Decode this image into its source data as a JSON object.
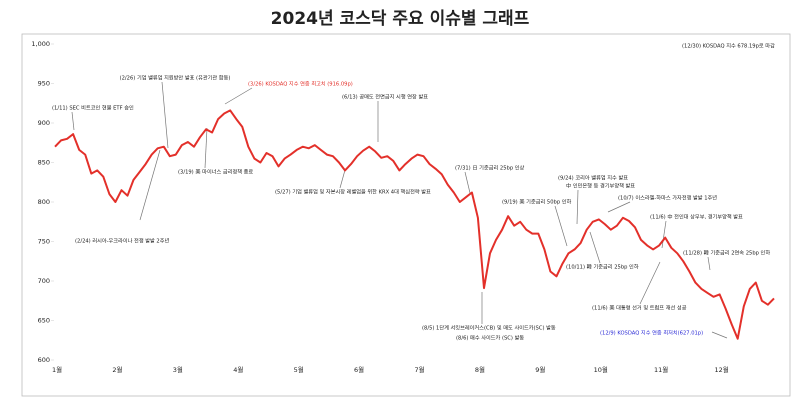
{
  "chart_data": {
    "type": "line",
    "title": "2024년 코스닥 주요 이슈별 그래프",
    "color": "#e3302a",
    "categories": [
      "1월",
      null,
      null,
      null,
      null,
      null,
      null,
      null,
      null,
      null,
      "2월",
      null,
      null,
      null,
      null,
      null,
      null,
      null,
      null,
      null,
      "3월",
      null,
      null,
      null,
      null,
      null,
      null,
      null,
      null,
      null,
      "4월",
      null,
      null,
      null,
      null,
      null,
      null,
      null,
      null,
      null,
      "5월",
      null,
      null,
      null,
      null,
      null,
      null,
      null,
      null,
      null,
      "6월",
      null,
      null,
      null,
      null,
      null,
      null,
      null,
      null,
      null,
      "7월",
      null,
      null,
      null,
      null,
      null,
      null,
      null,
      null,
      null,
      "8월",
      null,
      null,
      null,
      null,
      null,
      null,
      null,
      null,
      null,
      "9월",
      null,
      null,
      null,
      null,
      null,
      null,
      null,
      null,
      null,
      "10월",
      null,
      null,
      null,
      null,
      null,
      null,
      null,
      null,
      null,
      "11월",
      null,
      null,
      null,
      null,
      null,
      null,
      null,
      null,
      null,
      "12월",
      null,
      null,
      null,
      null,
      null,
      null,
      null,
      null,
      null
    ],
    "values": [
      870,
      878,
      880,
      886,
      866,
      860,
      836,
      840,
      832,
      810,
      800,
      815,
      808,
      828,
      838,
      848,
      860,
      868,
      870,
      858,
      860,
      872,
      876,
      870,
      882,
      892,
      888,
      905,
      912,
      916,
      905,
      895,
      870,
      855,
      850,
      862,
      858,
      845,
      855,
      860,
      866,
      870,
      868,
      872,
      866,
      860,
      858,
      850,
      840,
      848,
      858,
      865,
      870,
      864,
      856,
      858,
      852,
      840,
      848,
      855,
      860,
      858,
      848,
      842,
      835,
      822,
      812,
      800,
      806,
      812,
      780,
      691,
      735,
      752,
      765,
      782,
      770,
      775,
      765,
      760,
      760,
      740,
      712,
      706,
      722,
      735,
      740,
      748,
      765,
      775,
      778,
      772,
      765,
      770,
      780,
      776,
      768,
      752,
      745,
      740,
      745,
      755,
      742,
      735,
      725,
      712,
      698,
      690,
      685,
      680,
      683,
      665,
      645,
      627,
      668,
      690,
      698,
      675,
      670,
      678
    ],
    "ylim": [
      600,
      1000
    ],
    "yticks": [
      600,
      650,
      700,
      750,
      800,
      850,
      900,
      950,
      {
        "value": 1000,
        "label": "1,000"
      }
    ],
    "annotations": [
      {
        "text": "(1/11) SEC 비트코인 현물 ETF 승인",
        "color": "#222"
      },
      {
        "text": "(2/26) 기업 밸류업 지원방안 발표 (유관기관 합동)",
        "color": "#222"
      },
      {
        "text": "(3/26) KOSDAQ 지수 연중 최고치 (916.09p)",
        "color": "#e3302a"
      },
      {
        "text": "(3/19) 美 마이너스 금리정책 종료",
        "color": "#222"
      },
      {
        "text": "(6/13) 공매도 전면금지 시행 연장 발표",
        "color": "#222"
      },
      {
        "text": "(2/24) 러시아-우크라이나 전쟁 발발 2주년",
        "color": "#222"
      },
      {
        "text": "(5/27) 기업 밸류업 및 자본시장 레벨업을 위한 KRX 4대 핵심전략 발표",
        "color": "#222"
      },
      {
        "text": "(7/31) 日 기준금리 25bp 인상",
        "color": "#222"
      },
      {
        "text": "(9/19) 美 기준금리 50bp 인하",
        "color": "#222"
      },
      {
        "text": "(9/24) 코리아 밸류업 지수 발표",
        "color": "#222"
      },
      {
        "text": "中 인민은행 등 경기부양책 발표",
        "color": "#222"
      },
      {
        "text": "(10/7) 이스라엘-하마스 가자전쟁 발발 1주년",
        "color": "#222"
      },
      {
        "text": "(11/6) 中 전인대 상무부, 경기부양책 발표",
        "color": "#222"
      },
      {
        "text": "(11/28) 韓 기준금리 2연속 25bp 인하",
        "color": "#222"
      },
      {
        "text": "(10/11) 韓 기준금리 25bp 인하",
        "color": "#222"
      },
      {
        "text": "(11/6) 美 대통령 선거 및 트럼프 재선 성공",
        "color": "#222"
      },
      {
        "text": "(8/5) 1단계 서킷브레이커스(CB) 및 매도 사이드카(SC) 발동",
        "color": "#222"
      },
      {
        "text": "(8/6) 매수 사이드카 (SC) 발동",
        "color": "#222"
      },
      {
        "text": "(12/9) KOSDAQ 지수 연중 최저치(627.01p)",
        "color": "#2b2bd6"
      },
      {
        "text": "(12/30) KOSDAQ 지수 678.19p로 마감",
        "color": "#222"
      }
    ]
  }
}
